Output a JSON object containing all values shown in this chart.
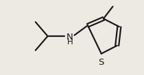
{
  "background_color": "#edeae4",
  "bond_color": "#1a1a1a",
  "S_color": "#1a1a1a",
  "N_color": "#1a1a1a",
  "line_width": 1.6,
  "font_size": 9.5,
  "xlim": [
    0,
    10
  ],
  "ylim": [
    0,
    5.5
  ],
  "figsize": [
    2.1,
    1.1
  ],
  "dpi": 100
}
